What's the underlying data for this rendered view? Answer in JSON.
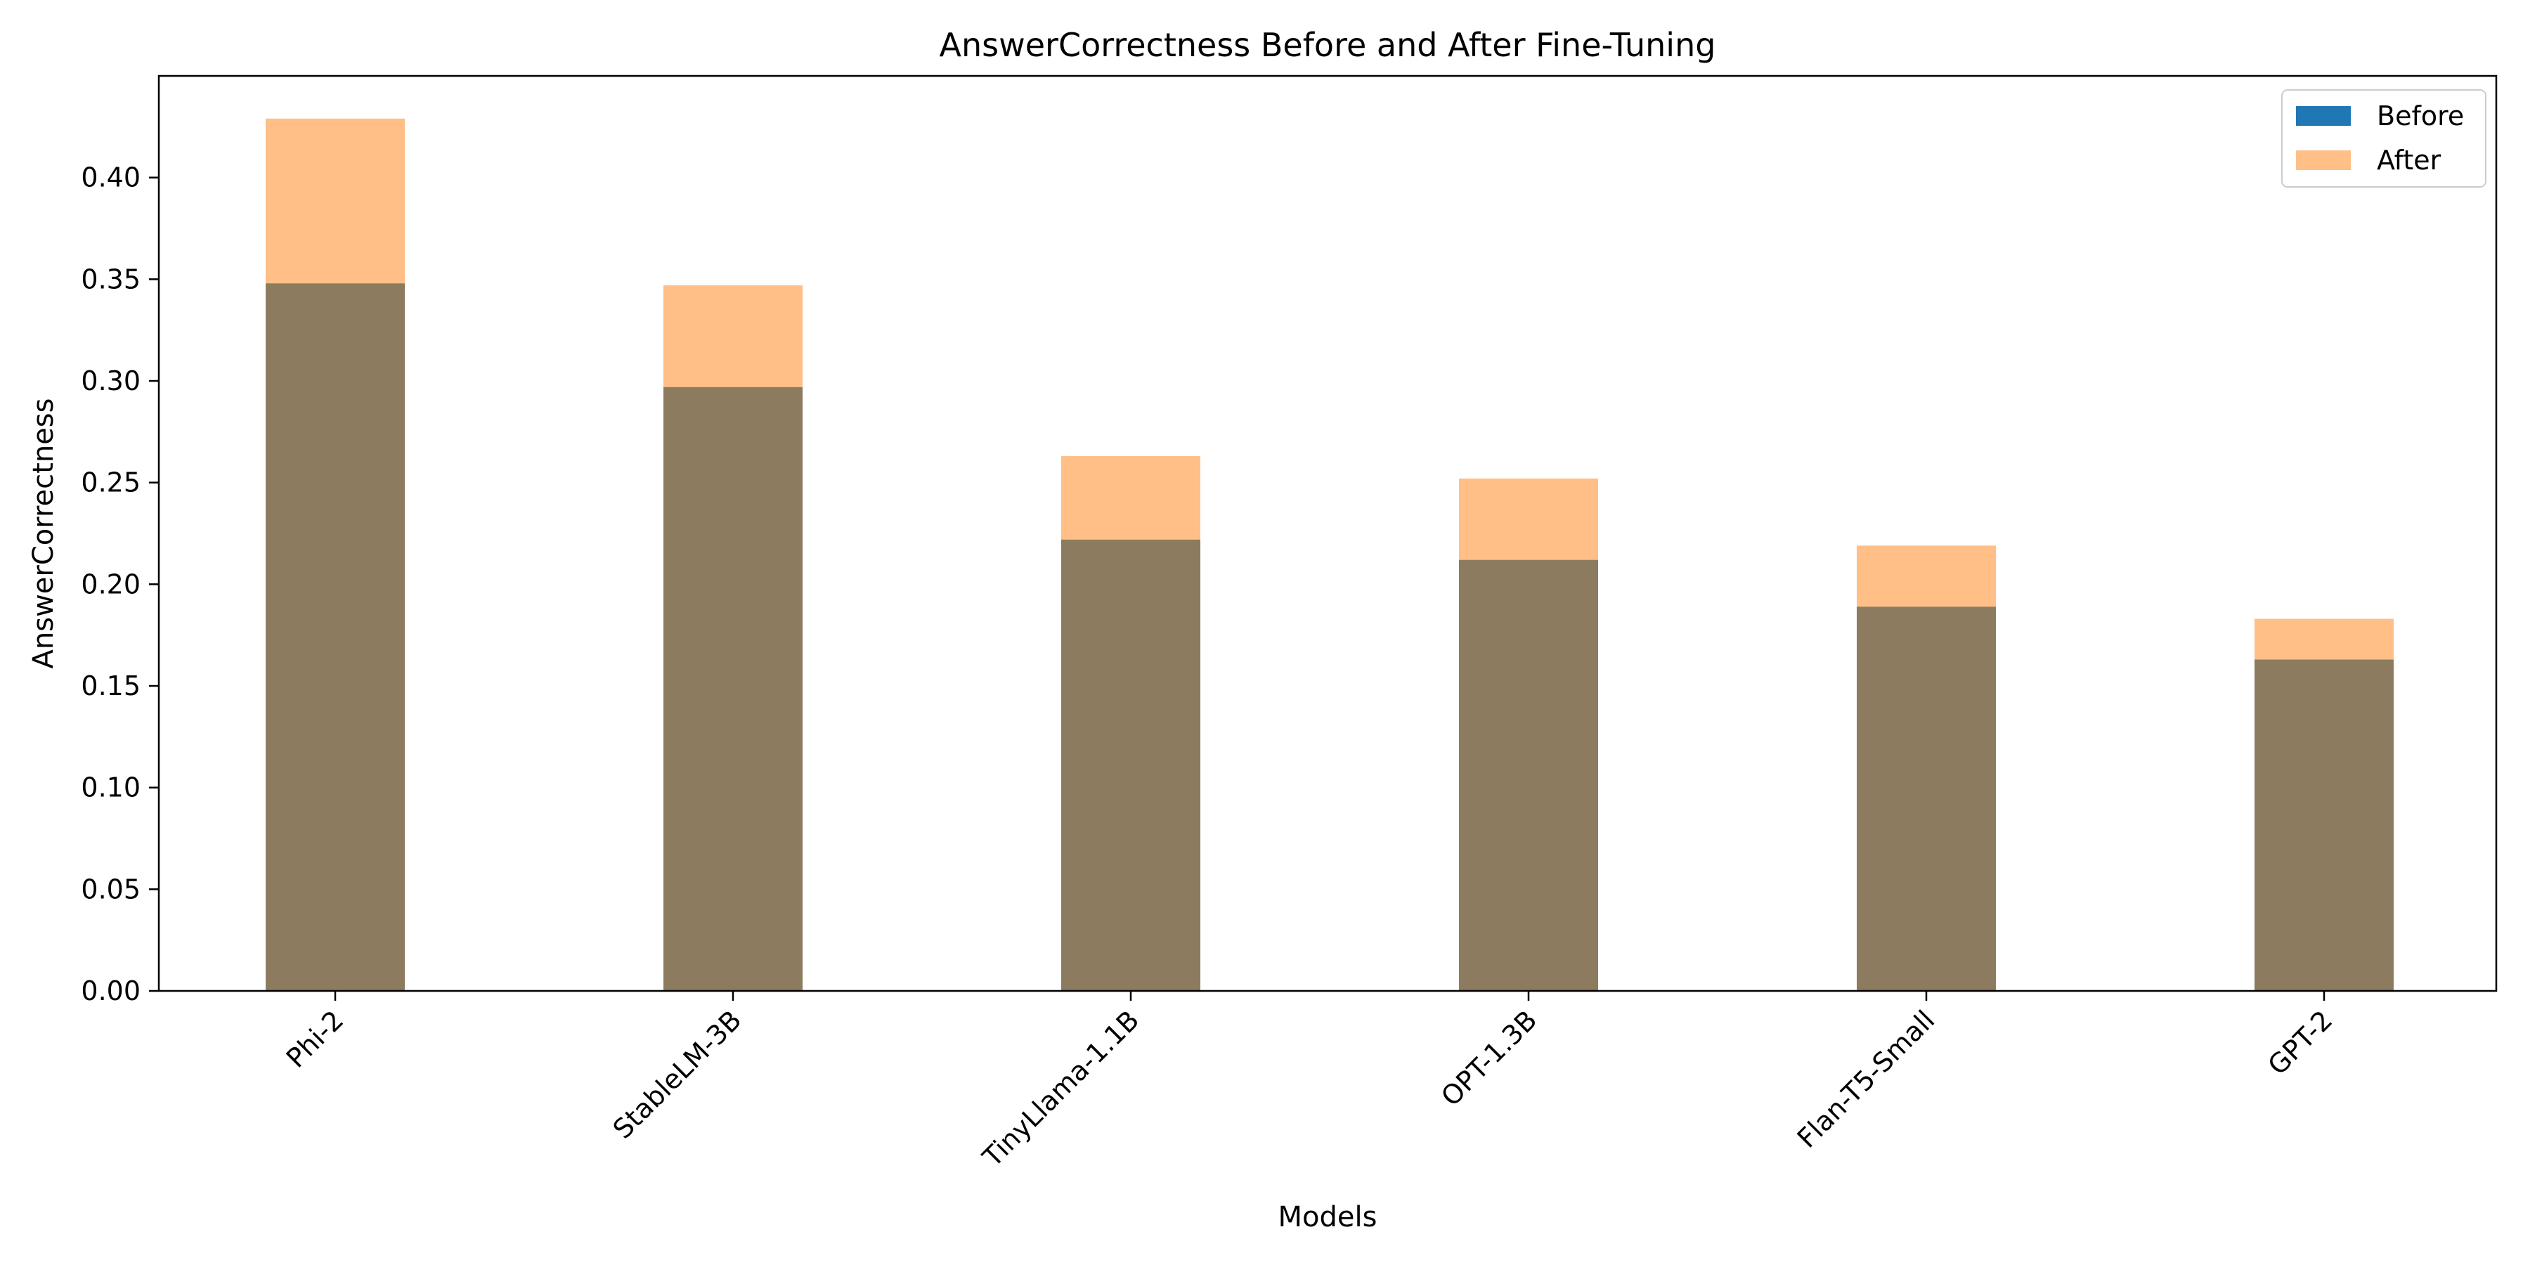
{
  "chart_data": {
    "type": "bar",
    "title": "AnswerCorrectness Before and After Fine-Tuning",
    "xlabel": "Models",
    "ylabel": "AnswerCorrectness",
    "categories": [
      "Phi-2",
      "StableLM-3B",
      "TinyLlama-1.1B",
      "OPT-1.3B",
      "Flan-T5-Small",
      "GPT-2"
    ],
    "series": [
      {
        "name": "Before",
        "color": "#1f77b4",
        "values": [
          0.348,
          0.297,
          0.222,
          0.212,
          0.189,
          0.163
        ]
      },
      {
        "name": "After",
        "color": "#ffbf86",
        "values": [
          0.429,
          0.347,
          0.263,
          0.252,
          0.219,
          0.183
        ]
      }
    ],
    "ylim": [
      0,
      0.45
    ],
    "yticks": [
      "0.00",
      "0.05",
      "0.10",
      "0.15",
      "0.20",
      "0.25",
      "0.30",
      "0.35",
      "0.40"
    ],
    "overlap_color": "#8c7b5e",
    "grid": false,
    "legend_position": "top-right",
    "xtick_rotation": "45deg"
  }
}
